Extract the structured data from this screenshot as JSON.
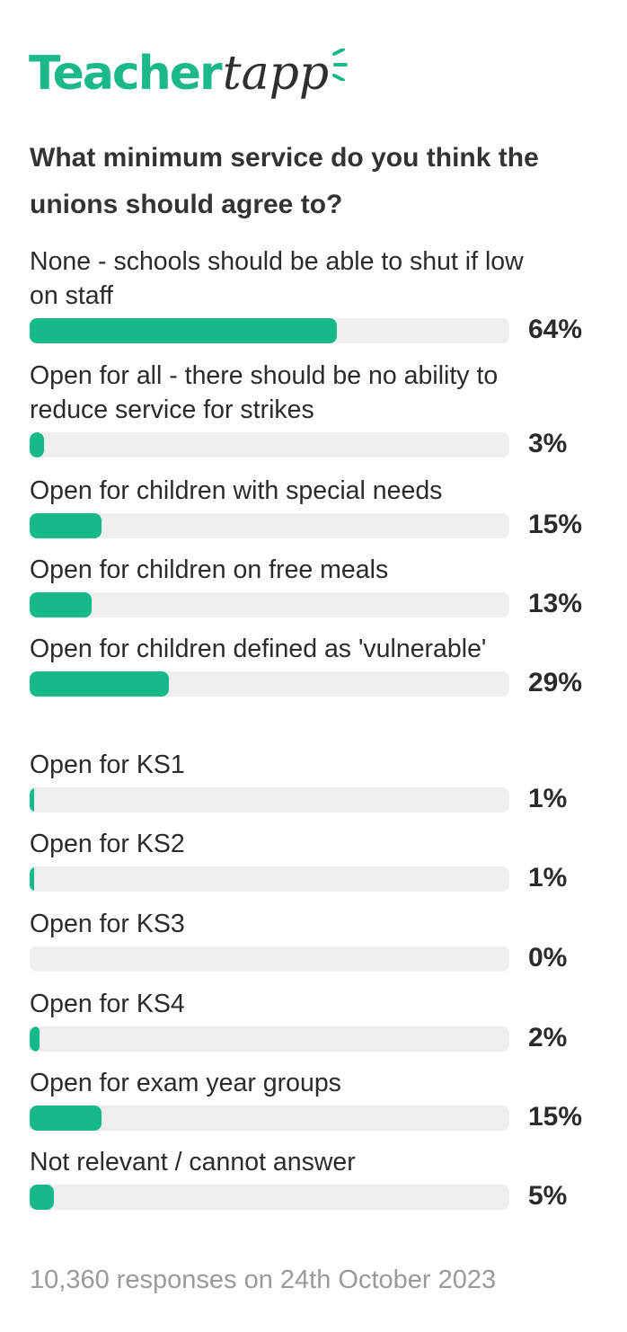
{
  "brand": {
    "part1": "Teacher",
    "part2": "tapp",
    "color": "#1bb98a"
  },
  "chart_data": {
    "type": "bar",
    "title": "What minimum service do you think the unions should agree to?",
    "categories": [
      "None - schools should be able to shut if low on staff",
      "Open for all - there should be no ability to reduce service for strikes",
      "Open for children with special needs",
      "Open for children on free meals",
      "Open for children defined as 'vulnerable'",
      "Open for KS1",
      "Open for KS2",
      "Open for KS3",
      "Open for KS4",
      "Open for exam year groups",
      "Not relevant / cannot answer"
    ],
    "values": [
      64,
      3,
      15,
      13,
      29,
      1,
      1,
      0,
      2,
      15,
      5
    ],
    "value_labels": [
      "64%",
      "3%",
      "15%",
      "13%",
      "29%",
      "1%",
      "1%",
      "0%",
      "2%",
      "15%",
      "5%"
    ],
    "unit": "%",
    "ylim": [
      0,
      100
    ],
    "bar_color": "#17b98a",
    "track_color": "#efefef"
  },
  "footer": "10,360 responses on 24th October 2023"
}
